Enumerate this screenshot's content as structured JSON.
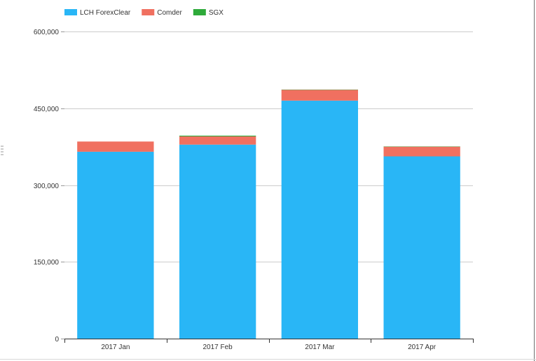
{
  "chart_data": {
    "type": "bar",
    "stacked": true,
    "categories": [
      "2017 Jan",
      "2017 Feb",
      "2017 Mar",
      "2017 Apr"
    ],
    "series": [
      {
        "name": "LCH ForexClear",
        "color": "#29b6f6",
        "values": [
          365000,
          379000,
          465000,
          356000
        ]
      },
      {
        "name": "Comder",
        "color": "#f07060",
        "values": [
          20000,
          16000,
          21000,
          19000
        ]
      },
      {
        "name": "SGX",
        "color": "#2eaa3a",
        "values": [
          0,
          1500,
          500,
          500
        ]
      }
    ],
    "ylim": [
      0,
      600000
    ],
    "yticks": [
      0,
      150000,
      300000,
      450000,
      600000
    ],
    "ytick_labels": [
      "0",
      "150,000",
      "300,000",
      "450,000",
      "600,000"
    ],
    "grid": true,
    "legend_position": "top-left"
  }
}
